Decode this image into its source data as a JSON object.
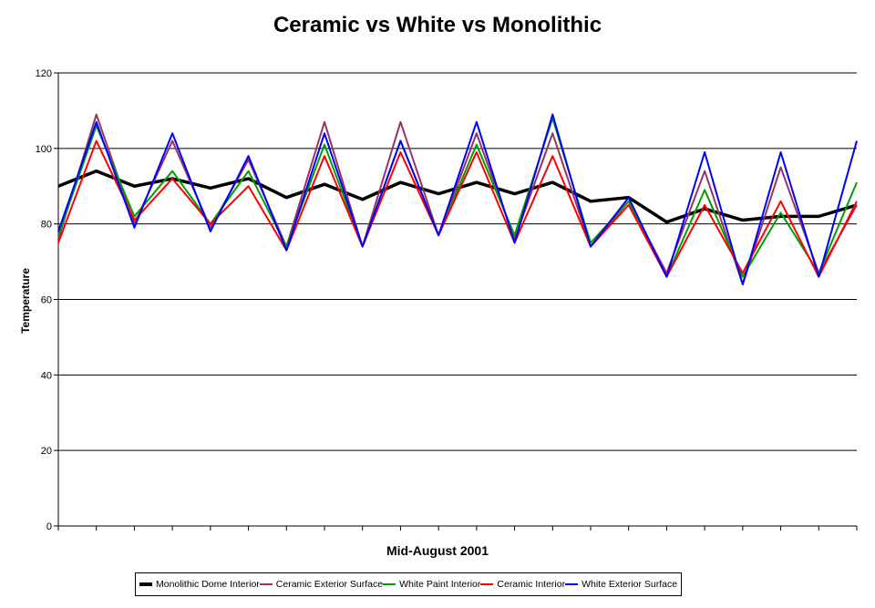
{
  "chart_data": {
    "type": "line",
    "title": "Ceramic vs White vs Monolithic",
    "xlabel": "Mid-August 2001",
    "ylabel": "Temperature",
    "ylim": [
      0,
      120
    ],
    "yticks": [
      "0",
      "20",
      "40",
      "60",
      "80",
      "100",
      "120"
    ],
    "grid": true,
    "legend_position": "bottom",
    "x": [
      0,
      1,
      2,
      3,
      4,
      5,
      6,
      7,
      8,
      9,
      10,
      11,
      12,
      13,
      14,
      15,
      16,
      17,
      18,
      19,
      20,
      21
    ],
    "series": [
      {
        "name": "Monolithic Dome Interior",
        "color": "#000000",
        "values": [
          90,
          94,
          90,
          92,
          89.5,
          92,
          87,
          90.5,
          86.5,
          91,
          88,
          91,
          88,
          91,
          86,
          87,
          80.5,
          84,
          81,
          82,
          82,
          85
        ]
      },
      {
        "name": "Ceramic Exterior Surface",
        "color": "#993366",
        "values": [
          76,
          109,
          80,
          102,
          79,
          97,
          74,
          107,
          74,
          107,
          77,
          104,
          76,
          104,
          74,
          86,
          67,
          94,
          64,
          95,
          67,
          85
        ]
      },
      {
        "name": "White Paint Interior",
        "color": "#00a000",
        "values": [
          77,
          106,
          82,
          94,
          80,
          94,
          74,
          101,
          74,
          102,
          77,
          101,
          77,
          108,
          75,
          86,
          66,
          89,
          66,
          83,
          67,
          91
        ]
      },
      {
        "name": "Ceramic Interior",
        "color": "#ff0000",
        "values": [
          75,
          102,
          81,
          92,
          80,
          90,
          73,
          98,
          74,
          99,
          77,
          99,
          75,
          98,
          74,
          85,
          66,
          85,
          67,
          86,
          66,
          86
        ]
      },
      {
        "name": "White Exterior Surface",
        "color": "#0000ff",
        "values": [
          78,
          107,
          79,
          104,
          78,
          98,
          73,
          104,
          74,
          102,
          77,
          107,
          75,
          109,
          74,
          87,
          66,
          99,
          64,
          99,
          66,
          102
        ]
      }
    ]
  }
}
